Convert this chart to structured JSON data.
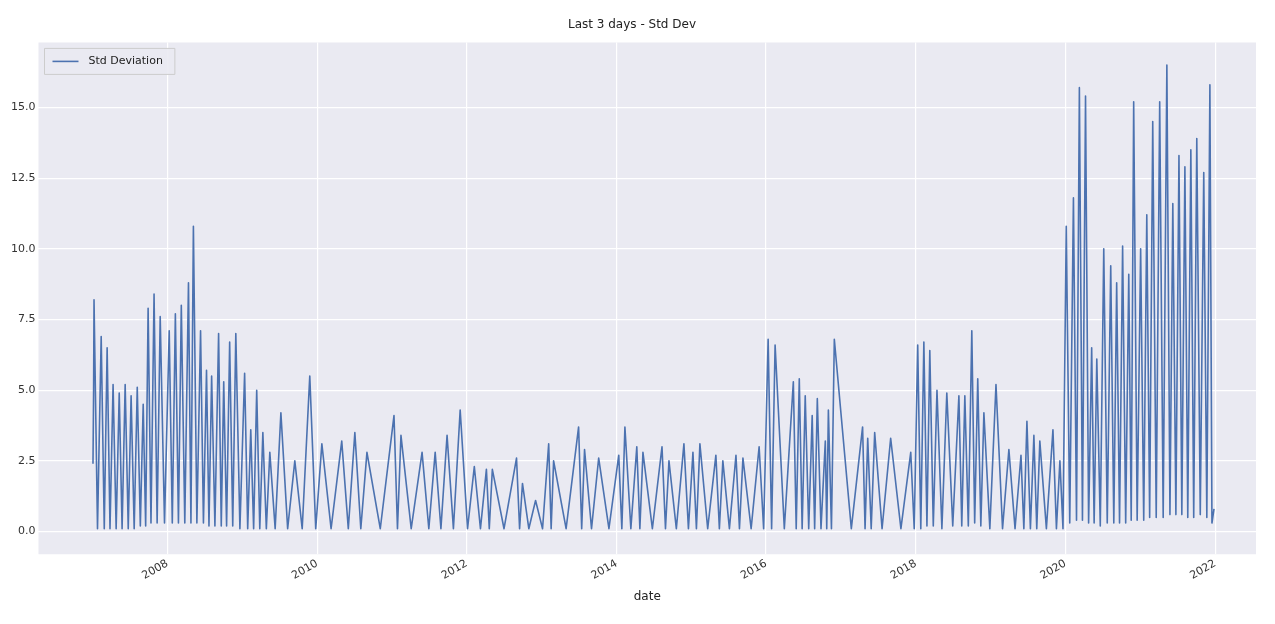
{
  "chart_data": {
    "type": "line",
    "title": "Last 3 days - Std Dev",
    "xlabel": "date",
    "x": [
      "2007-01-03",
      "2007-01-06",
      "2007-01-08",
      "2007-01-25",
      "2007-02-12",
      "2007-02-27",
      "2007-03-13",
      "2007-03-27",
      "2007-04-11",
      "2007-04-26",
      "2007-05-11",
      "2007-05-25",
      "2007-06-09",
      "2007-06-24",
      "2007-07-08",
      "2007-07-23",
      "2007-08-07",
      "2007-08-22",
      "2007-09-05",
      "2007-09-17",
      "2007-09-29",
      "2007-10-13",
      "2007-10-28",
      "2007-11-12",
      "2007-11-27",
      "2007-12-18",
      "2008-01-10",
      "2008-01-25",
      "2008-02-09",
      "2008-02-24",
      "2008-03-09",
      "2008-03-26",
      "2008-04-13",
      "2008-04-25",
      "2008-05-07",
      "2008-05-24",
      "2008-06-11",
      "2008-06-25",
      "2008-07-10",
      "2008-07-22",
      "2008-08-04",
      "2008-08-20",
      "2008-09-07",
      "2008-09-20",
      "2008-10-02",
      "2008-10-16",
      "2008-10-31",
      "2008-11-15",
      "2008-11-30",
      "2008-12-20",
      "2009-01-12",
      "2009-01-27",
      "2009-02-11",
      "2009-02-25",
      "2009-03-12",
      "2009-03-27",
      "2009-04-11",
      "2009-04-28",
      "2009-05-15",
      "2009-06-10",
      "2009-07-08",
      "2009-08-10",
      "2009-09-14",
      "2009-10-20",
      "2009-11-26",
      "2009-12-25",
      "2010-01-24",
      "2010-03-10",
      "2010-05-01",
      "2010-06-02",
      "2010-07-04",
      "2010-08-02",
      "2010-09-01",
      "2010-11-05",
      "2011-01-11",
      "2011-01-28",
      "2011-02-14",
      "2011-04-05",
      "2011-05-28",
      "2011-06-30",
      "2011-07-31",
      "2011-08-28",
      "2011-09-27",
      "2011-10-28",
      "2011-11-30",
      "2012-01-05",
      "2012-02-07",
      "2012-03-08",
      "2012-04-06",
      "2012-04-20",
      "2012-05-05",
      "2012-07-01",
      "2012-08-31",
      "2012-09-15",
      "2012-09-29",
      "2012-10-30",
      "2012-12-02",
      "2013-01-05",
      "2013-02-04",
      "2013-02-16",
      "2013-02-28",
      "2013-04-30",
      "2013-06-30",
      "2013-07-15",
      "2013-07-29",
      "2013-09-01",
      "2013-10-06",
      "2013-11-25",
      "2014-01-12",
      "2014-01-27",
      "2014-02-11",
      "2014-03-12",
      "2014-04-10",
      "2014-04-25",
      "2014-05-10",
      "2014-06-25",
      "2014-08-11",
      "2014-08-28",
      "2014-09-14",
      "2014-10-20",
      "2014-11-26",
      "2014-12-18",
      "2015-01-09",
      "2015-01-26",
      "2015-02-12",
      "2015-03-22",
      "2015-05-01",
      "2015-05-18",
      "2015-06-04",
      "2015-07-06",
      "2015-08-07",
      "2015-08-24",
      "2015-09-10",
      "2015-10-20",
      "2015-11-28",
      "2015-12-20",
      "2016-01-11",
      "2016-01-28",
      "2016-02-14",
      "2016-03-30",
      "2016-05-13",
      "2016-05-27",
      "2016-06-11",
      "2016-06-25",
      "2016-07-10",
      "2016-07-27",
      "2016-08-13",
      "2016-08-25",
      "2016-09-07",
      "2016-09-25",
      "2016-10-16",
      "2016-10-23",
      "2016-10-31",
      "2016-11-15",
      "2016-11-29",
      "2017-02-20",
      "2017-04-16",
      "2017-04-28",
      "2017-05-11",
      "2017-05-28",
      "2017-06-14",
      "2017-07-20",
      "2017-08-31",
      "2017-10-20",
      "2017-12-07",
      "2017-12-24",
      "2018-01-10",
      "2018-01-25",
      "2018-02-09",
      "2018-02-24",
      "2018-03-10",
      "2018-03-27",
      "2018-04-14",
      "2018-05-08",
      "2018-06-01",
      "2018-06-30",
      "2018-07-30",
      "2018-08-13",
      "2018-08-28",
      "2018-09-14",
      "2018-10-01",
      "2018-10-15",
      "2018-10-30",
      "2018-11-14",
      "2018-11-29",
      "2018-12-28",
      "2019-01-27",
      "2019-02-28",
      "2019-03-31",
      "2019-04-30",
      "2019-05-29",
      "2019-06-12",
      "2019-06-27",
      "2019-07-14",
      "2019-07-31",
      "2019-08-14",
      "2019-08-29",
      "2019-09-30",
      "2019-11-01",
      "2019-11-18",
      "2019-12-05",
      "2019-12-20",
      "2020-01-05",
      "2020-01-22",
      "2020-02-09",
      "2020-02-24",
      "2020-03-09",
      "2020-03-24",
      "2020-04-08",
      "2020-04-23",
      "2020-05-08",
      "2020-05-20",
      "2020-06-02",
      "2020-06-19",
      "2020-07-06",
      "2020-07-23",
      "2020-08-09",
      "2020-08-24",
      "2020-09-07",
      "2020-09-21",
      "2020-10-06",
      "2020-10-21",
      "2020-11-05",
      "2020-11-17",
      "2020-11-29",
      "2020-12-16",
      "2021-01-02",
      "2021-01-17",
      "2021-02-01",
      "2021-02-15",
      "2021-03-02",
      "2021-03-19",
      "2021-04-05",
      "2021-04-22",
      "2021-05-10",
      "2021-05-25",
      "2021-06-08",
      "2021-06-23",
      "2021-07-08",
      "2021-07-22",
      "2021-08-06",
      "2021-08-20",
      "2021-09-04",
      "2021-09-18",
      "2021-10-03",
      "2021-10-20",
      "2021-11-06",
      "2021-11-21",
      "2021-12-06",
      "2021-12-16",
      "2021-12-26"
    ],
    "series": [
      {
        "name": "Std Deviation",
        "color": "#4c72b0",
        "values": [
          2.4,
          5.0,
          8.2,
          0.1,
          6.9,
          0.1,
          6.5,
          0.1,
          5.2,
          0.1,
          4.9,
          0.1,
          5.2,
          0.1,
          4.8,
          0.1,
          5.1,
          0.2,
          4.5,
          0.2,
          7.9,
          0.3,
          8.4,
          0.3,
          7.6,
          0.3,
          7.1,
          0.3,
          7.7,
          0.3,
          8.0,
          0.3,
          8.8,
          0.3,
          10.8,
          0.3,
          7.1,
          0.3,
          5.7,
          0.2,
          5.5,
          0.2,
          7.0,
          0.2,
          5.3,
          0.2,
          6.7,
          0.2,
          7.0,
          0.1,
          5.6,
          0.1,
          3.6,
          0.1,
          5.0,
          0.1,
          3.5,
          0.1,
          2.8,
          0.1,
          4.2,
          0.1,
          2.5,
          0.1,
          5.5,
          0.1,
          3.1,
          0.1,
          3.2,
          0.1,
          3.5,
          0.1,
          2.8,
          0.1,
          4.1,
          0.1,
          3.4,
          0.1,
          2.8,
          0.1,
          2.8,
          0.1,
          3.4,
          0.1,
          4.3,
          0.1,
          2.3,
          0.1,
          2.2,
          0.1,
          2.2,
          0.1,
          2.6,
          0.1,
          1.7,
          0.1,
          1.1,
          0.1,
          3.1,
          0.1,
          2.5,
          0.1,
          3.7,
          0.1,
          2.9,
          0.1,
          2.6,
          0.1,
          2.7,
          0.1,
          3.7,
          0.1,
          3.0,
          0.1,
          2.8,
          0.1,
          3.0,
          0.1,
          2.5,
          0.1,
          3.1,
          0.1,
          2.8,
          0.1,
          3.1,
          0.1,
          2.7,
          0.1,
          2.5,
          0.1,
          2.7,
          0.1,
          2.6,
          0.1,
          3.0,
          0.1,
          6.8,
          0.1,
          6.6,
          0.1,
          5.3,
          0.1,
          5.4,
          0.1,
          4.8,
          0.1,
          4.1,
          0.1,
          4.7,
          0.1,
          3.2,
          0.1,
          4.3,
          0.1,
          6.8,
          0.1,
          3.7,
          0.1,
          3.3,
          0.1,
          3.5,
          0.1,
          3.3,
          0.1,
          2.8,
          0.1,
          6.6,
          0.1,
          6.7,
          0.2,
          6.4,
          0.2,
          5.0,
          0.1,
          4.9,
          0.2,
          4.8,
          0.2,
          4.8,
          0.2,
          7.1,
          0.3,
          5.4,
          0.2,
          4.2,
          0.1,
          5.2,
          0.1,
          2.9,
          0.1,
          2.7,
          0.1,
          3.9,
          0.1,
          3.4,
          0.1,
          3.2,
          0.1,
          3.6,
          0.1,
          2.5,
          0.1,
          10.8,
          0.3,
          11.8,
          0.4,
          15.7,
          0.4,
          15.4,
          0.3,
          6.5,
          0.3,
          6.1,
          0.2,
          10.0,
          0.3,
          9.4,
          0.3,
          8.8,
          0.3,
          10.1,
          0.3,
          9.1,
          0.4,
          15.2,
          0.4,
          10.0,
          0.4,
          11.2,
          0.5,
          14.5,
          0.5,
          15.2,
          0.5,
          16.5,
          0.6,
          11.6,
          0.6,
          13.3,
          0.6,
          12.9,
          0.5,
          13.5,
          0.5,
          13.9,
          0.6,
          12.7,
          0.5,
          15.8,
          0.3,
          0.8
        ]
      }
    ],
    "xlim": [
      "2006-04-12",
      "2022-07-19"
    ],
    "xticks": [
      "2008",
      "2010",
      "2012",
      "2014",
      "2016",
      "2018",
      "2020",
      "2022"
    ],
    "ylim": [
      -0.8,
      17.3
    ],
    "yticks": [
      {
        "value": 0,
        "label": "0.0"
      },
      2.5,
      {
        "value": 5,
        "label": "5.0"
      },
      7.5,
      {
        "value": 10,
        "label": "10.0"
      },
      12.5,
      {
        "value": 15,
        "label": "15.0"
      }
    ],
    "grid": true,
    "legend": "top left"
  }
}
